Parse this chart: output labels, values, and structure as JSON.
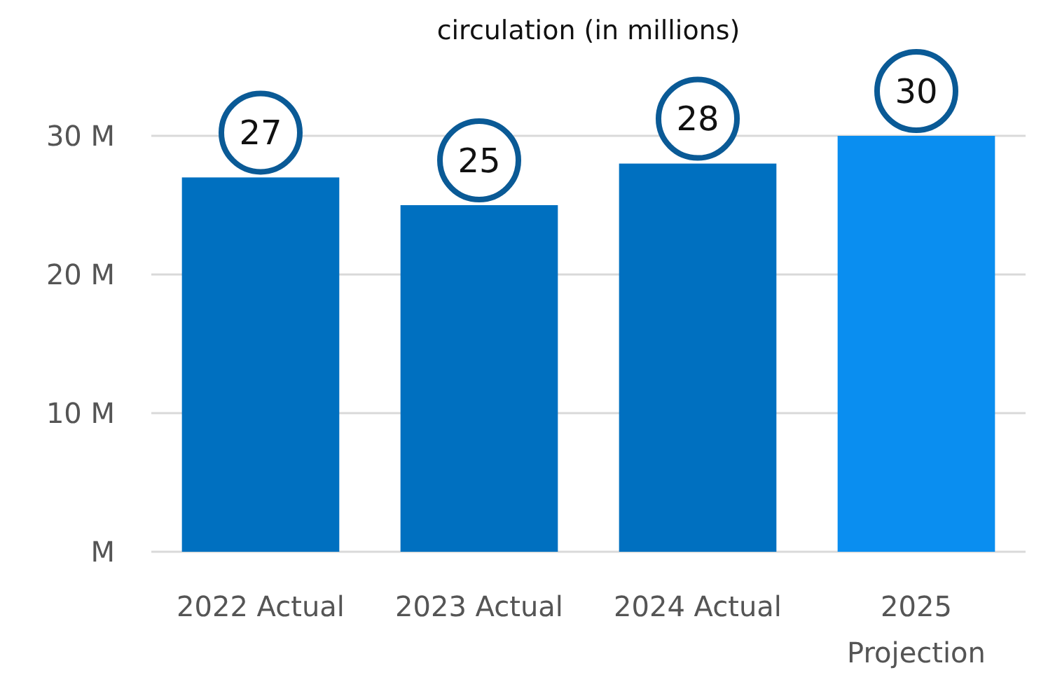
{
  "chart_data": {
    "type": "bar",
    "title": "circulation (in millions)",
    "categories": [
      "2022 Actual",
      "2023 Actual",
      "2024 Actual",
      "2025 Projection"
    ],
    "values": [
      27,
      25,
      28,
      30
    ],
    "colors": [
      "#0070c0",
      "#0070c0",
      "#0070c0",
      "#0a8ef0"
    ],
    "ylim": [
      0,
      30
    ],
    "yticks": [
      {
        "value": 0,
        "label": "M"
      },
      {
        "value": 10,
        "label": "10 M"
      },
      {
        "value": 20,
        "label": "20 M"
      },
      {
        "value": 30,
        "label": "30 M"
      }
    ],
    "grid": "y",
    "data_labels": true
  }
}
